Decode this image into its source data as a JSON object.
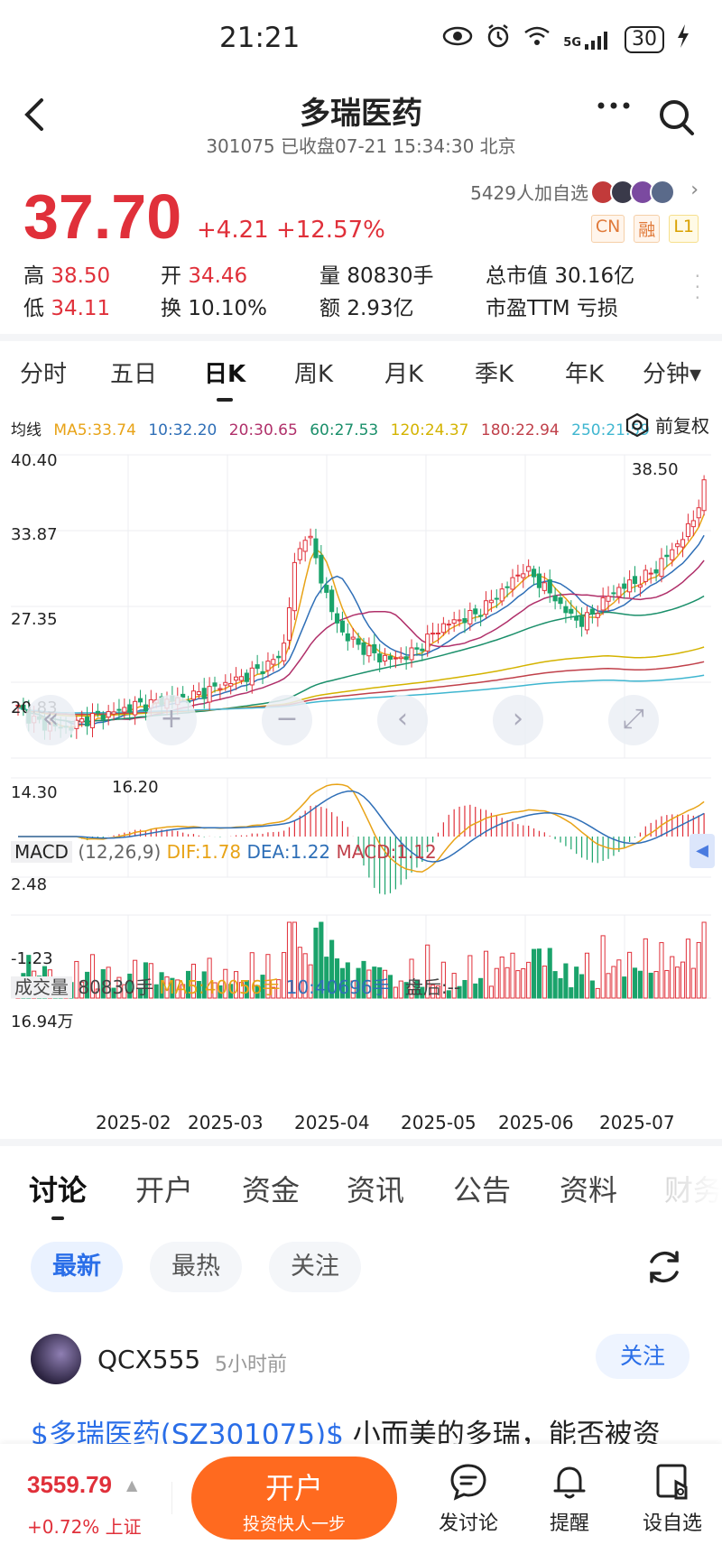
{
  "status_bar": {
    "time": "21:21",
    "network": "5G",
    "battery": "30"
  },
  "header": {
    "stock_name": "多瑞医药",
    "subtitle": "301075 已收盘07-21 15:34:30 北京"
  },
  "quote": {
    "price": "37.70",
    "change": "+4.21 +12.57%",
    "watchers": "5429人加自选",
    "tags": [
      "CN",
      "融",
      "L1"
    ],
    "stats": [
      {
        "k": "高",
        "v": "38.50",
        "color": "red"
      },
      {
        "k": "开",
        "v": "34.46",
        "color": "red"
      },
      {
        "k": "量",
        "v": "80830手",
        "color": "none"
      },
      {
        "k": "总市值",
        "v": "30.16亿",
        "color": "none"
      },
      {
        "k": "低",
        "v": "34.11",
        "color": "red"
      },
      {
        "k": "换",
        "v": "10.10%",
        "color": "none"
      },
      {
        "k": "额",
        "v": "2.93亿",
        "color": "none"
      },
      {
        "k": "市盈TTM",
        "v": "亏损",
        "color": "none"
      }
    ]
  },
  "period_tabs": [
    "分时",
    "五日",
    "日K",
    "周K",
    "月K",
    "季K",
    "年K",
    "分钟▾"
  ],
  "active_period": "日K",
  "ma_line": {
    "label": "均线",
    "items": [
      {
        "text": "MA5:33.74",
        "color": "#e8a317"
      },
      {
        "text": "10:32.20",
        "color": "#2f6fb7"
      },
      {
        "text": "20:30.65",
        "color": "#b0306a"
      },
      {
        "text": "60:27.53",
        "color": "#1a8f6a"
      },
      {
        "text": "120:24.37",
        "color": "#d4b300"
      },
      {
        "text": "180:22.94",
        "color": "#c0404a"
      },
      {
        "text": "250:21.59",
        "color": "#3fb6d0"
      }
    ],
    "fuquan": "前复权"
  },
  "chart_data": {
    "type": "candlestick",
    "y_ticks": [
      "40.40",
      "33.87",
      "27.35",
      "20.83",
      "14.30"
    ],
    "ylim": [
      14.3,
      40.4
    ],
    "high_marker": "38.50",
    "low_marker": "16.20",
    "x_labels": [
      "2025-02",
      "2025-03",
      "2025-04",
      "2025-05",
      "2025-06",
      "2025-07"
    ],
    "close_path": [
      18.6,
      17.8,
      17.2,
      17.0,
      16.9,
      17.3,
      17.8,
      18.0,
      18.3,
      18.6,
      18.9,
      19.0,
      19.2,
      19.3,
      19.5,
      19.8,
      20.2,
      20.6,
      21.0,
      21.4,
      21.9,
      22.5,
      23.4,
      31.0,
      34.0,
      30.5,
      27.0,
      25.0,
      24.2,
      23.6,
      23.0,
      22.8,
      23.0,
      23.5,
      24.5,
      25.5,
      26.0,
      26.3,
      26.7,
      27.5,
      28.5,
      29.5,
      30.6,
      29.8,
      28.7,
      27.6,
      26.4,
      26.0,
      27.0,
      28.2,
      29.0,
      29.3,
      29.8,
      30.6,
      31.8,
      33.0,
      34.5,
      37.7
    ],
    "macd": {
      "params": "(12,26,9)",
      "dif": "DIF:1.78",
      "dea": "DEA:1.22",
      "macd": "MACD:1.12",
      "y_ticks": [
        "2.48",
        "-1.23"
      ]
    },
    "volume": {
      "label": "成交量",
      "value": "80830手",
      "ma5": "MA5:40056手",
      "ma10": "10:40696手",
      "after_hours": "盘后:--",
      "y_max": "16.94万"
    }
  },
  "content_tabs": [
    "讨论",
    "开户",
    "资金",
    "资讯",
    "公告",
    "资料",
    "财务"
  ],
  "filters": [
    "最新",
    "最热",
    "关注"
  ],
  "post": {
    "user": "QCX555",
    "time": "5小时前",
    "follow": "关注",
    "link": "$多瑞医药(SZ301075)$",
    "text": " 小而美的多瑞，能否被资"
  },
  "bottom_bar": {
    "index_value": "3559.79",
    "index_change": "+0.72% 上证",
    "open_title": "开户",
    "open_sub": "投资快人一步",
    "nav": [
      "发讨论",
      "提醒",
      "设自选"
    ]
  }
}
